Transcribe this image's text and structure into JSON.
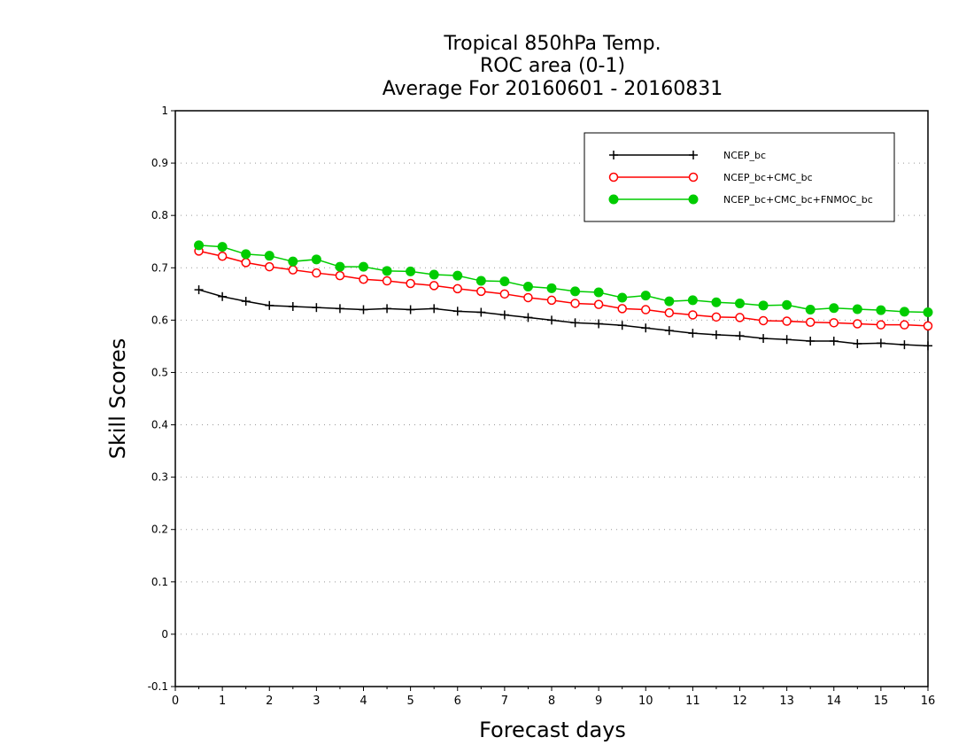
{
  "chart_data": {
    "type": "line",
    "title": [
      "Tropical 850hPa Temp.",
      "ROC area (0-1)",
      "Average For 20160601 - 20160831"
    ],
    "xlabel": "Forecast days",
    "ylabel": "Skill Scores",
    "xlim": [
      0,
      16
    ],
    "ylim": [
      -0.1,
      1
    ],
    "xticks": [
      0,
      1,
      2,
      3,
      4,
      5,
      6,
      7,
      8,
      9,
      10,
      11,
      12,
      13,
      14,
      15,
      16
    ],
    "xtick_labels": [
      "0",
      "1",
      "2",
      "3",
      "4",
      "5",
      "6",
      "7",
      "8",
      "9",
      "10",
      "11",
      "12",
      "13",
      "14",
      "15",
      "16"
    ],
    "yticks": [
      -0.1,
      0,
      0.1,
      0.2,
      0.3,
      0.4,
      0.5,
      0.6,
      0.7,
      0.8,
      0.9,
      1
    ],
    "ytick_labels": [
      "-0.1",
      "0",
      "0.1",
      "0.2",
      "0.3",
      "0.4",
      "0.5",
      "0.6",
      "0.7",
      "0.8",
      "0.9",
      "1"
    ],
    "grid": "horizontal dotted",
    "legend_position": "top-right",
    "x": [
      0.5,
      1,
      1.5,
      2,
      2.5,
      3,
      3.5,
      4,
      4.5,
      5,
      5.5,
      6,
      6.5,
      7,
      7.5,
      8,
      8.5,
      9,
      9.5,
      10,
      10.5,
      11,
      11.5,
      12,
      12.5,
      13,
      13.5,
      14,
      14.5,
      15,
      15.5,
      16
    ],
    "series": [
      {
        "name": "NCEP_bc",
        "color": "#000000",
        "marker": "plus",
        "values": [
          0.658,
          0.645,
          0.636,
          0.628,
          0.626,
          0.624,
          0.622,
          0.62,
          0.622,
          0.62,
          0.622,
          0.617,
          0.615,
          0.61,
          0.605,
          0.6,
          0.595,
          0.593,
          0.59,
          0.585,
          0.58,
          0.575,
          0.572,
          0.57,
          0.565,
          0.563,
          0.56,
          0.56,
          0.555,
          0.556,
          0.553,
          0.551
        ]
      },
      {
        "name": "NCEP_bc+CMC_bc",
        "color": "#ff0000",
        "marker": "open-circle",
        "values": [
          0.732,
          0.722,
          0.71,
          0.702,
          0.696,
          0.69,
          0.685,
          0.678,
          0.675,
          0.67,
          0.666,
          0.66,
          0.655,
          0.65,
          0.643,
          0.638,
          0.632,
          0.63,
          0.622,
          0.62,
          0.614,
          0.61,
          0.606,
          0.605,
          0.599,
          0.598,
          0.596,
          0.595,
          0.593,
          0.591,
          0.591,
          0.589
        ]
      },
      {
        "name": "NCEP_bc+CMC_bc+FNMOC_bc",
        "color": "#00cc00",
        "marker": "filled-circle",
        "values": [
          0.743,
          0.74,
          0.726,
          0.723,
          0.712,
          0.716,
          0.702,
          0.702,
          0.694,
          0.693,
          0.687,
          0.685,
          0.675,
          0.674,
          0.664,
          0.661,
          0.655,
          0.653,
          0.643,
          0.647,
          0.636,
          0.638,
          0.634,
          0.632,
          0.628,
          0.629,
          0.62,
          0.623,
          0.621,
          0.619,
          0.616,
          0.615
        ]
      }
    ]
  }
}
